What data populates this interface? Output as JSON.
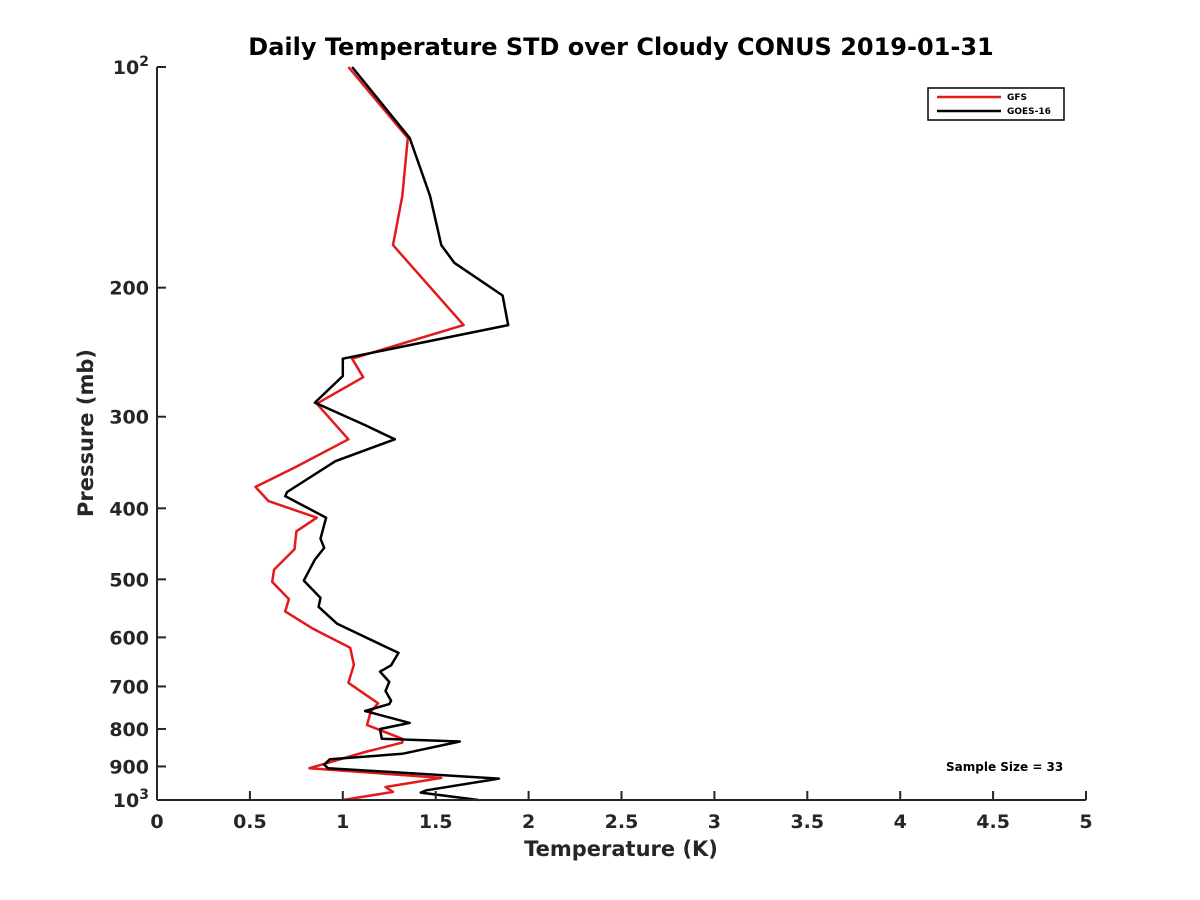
{
  "chart_data": {
    "type": "line",
    "title": "Daily Temperature STD over Cloudy CONUS 2019-01-31",
    "xlabel": "Temperature (K)",
    "ylabel": "Pressure (mb)",
    "xlim": [
      0,
      5
    ],
    "ylim": [
      100,
      1000
    ],
    "yscale": "log",
    "y_reversed": true,
    "x_ticks": [
      0,
      0.5,
      1,
      1.5,
      2,
      2.5,
      3,
      3.5,
      4,
      4.5,
      5
    ],
    "x_tick_labels": [
      "0",
      "0.5",
      "1",
      "1.5",
      "2",
      "2.5",
      "3",
      "3.5",
      "4",
      "4.5",
      "5"
    ],
    "y_ticks": [
      100,
      200,
      300,
      400,
      500,
      600,
      700,
      800,
      900,
      1000
    ],
    "y_tick_labels": [
      {
        "base": "10",
        "sup": "2"
      },
      {
        "base": "200",
        "sup": ""
      },
      {
        "base": "300",
        "sup": ""
      },
      {
        "base": "400",
        "sup": ""
      },
      {
        "base": "500",
        "sup": ""
      },
      {
        "base": "600",
        "sup": ""
      },
      {
        "base": "700",
        "sup": ""
      },
      {
        "base": "800",
        "sup": ""
      },
      {
        "base": "900",
        "sup": ""
      },
      {
        "base": "10",
        "sup": "3"
      }
    ],
    "legend_position": "top-right",
    "annotation": "Sample Size = 33",
    "series": [
      {
        "name": "GFS",
        "color": "#e31a1c",
        "points": [
          [
            1.03,
            100
          ],
          [
            1.35,
            125
          ],
          [
            1.32,
            150
          ],
          [
            1.27,
            175
          ],
          [
            1.65,
            225
          ],
          [
            1.05,
            250
          ],
          [
            1.11,
            265
          ],
          [
            0.86,
            288
          ],
          [
            1.03,
            322
          ],
          [
            0.74,
            352
          ],
          [
            0.53,
            374
          ],
          [
            0.6,
            391
          ],
          [
            0.86,
            412
          ],
          [
            0.75,
            430
          ],
          [
            0.74,
            455
          ],
          [
            0.63,
            485
          ],
          [
            0.62,
            504
          ],
          [
            0.71,
            532
          ],
          [
            0.69,
            553
          ],
          [
            0.84,
            584
          ],
          [
            1.04,
            620
          ],
          [
            1.06,
            654
          ],
          [
            1.03,
            692
          ],
          [
            1.19,
            738
          ],
          [
            1.15,
            758
          ],
          [
            1.13,
            790
          ],
          [
            1.32,
            825
          ],
          [
            1.32,
            835
          ],
          [
            1.12,
            860
          ],
          [
            0.82,
            905
          ],
          [
            1.53,
            933
          ],
          [
            1.23,
            960
          ],
          [
            1.27,
            975
          ],
          [
            1.0,
            1000
          ]
        ]
      },
      {
        "name": "GOES-16",
        "color": "#000000",
        "points": [
          [
            1.05,
            100
          ],
          [
            1.36,
            125
          ],
          [
            1.47,
            150
          ],
          [
            1.53,
            175
          ],
          [
            1.6,
            185
          ],
          [
            1.86,
            205
          ],
          [
            1.89,
            225
          ],
          [
            1.0,
            250
          ],
          [
            1.0,
            264
          ],
          [
            0.85,
            287
          ],
          [
            1.12,
            308
          ],
          [
            1.28,
            322
          ],
          [
            0.96,
            345
          ],
          [
            0.7,
            380
          ],
          [
            0.69,
            385
          ],
          [
            0.91,
            412
          ],
          [
            0.88,
            440
          ],
          [
            0.9,
            453
          ],
          [
            0.85,
            470
          ],
          [
            0.79,
            502
          ],
          [
            0.88,
            530
          ],
          [
            0.87,
            545
          ],
          [
            0.97,
            575
          ],
          [
            1.3,
            630
          ],
          [
            1.26,
            655
          ],
          [
            1.2,
            668
          ],
          [
            1.25,
            690
          ],
          [
            1.23,
            710
          ],
          [
            1.26,
            732
          ],
          [
            1.25,
            740
          ],
          [
            1.12,
            756
          ],
          [
            1.36,
            785
          ],
          [
            1.2,
            800
          ],
          [
            1.21,
            825
          ],
          [
            1.63,
            832
          ],
          [
            1.32,
            865
          ],
          [
            0.93,
            880
          ],
          [
            0.9,
            895
          ],
          [
            0.92,
            905
          ],
          [
            1.84,
            935
          ],
          [
            1.45,
            970
          ],
          [
            1.42,
            977
          ],
          [
            1.73,
            1000
          ]
        ]
      }
    ]
  }
}
